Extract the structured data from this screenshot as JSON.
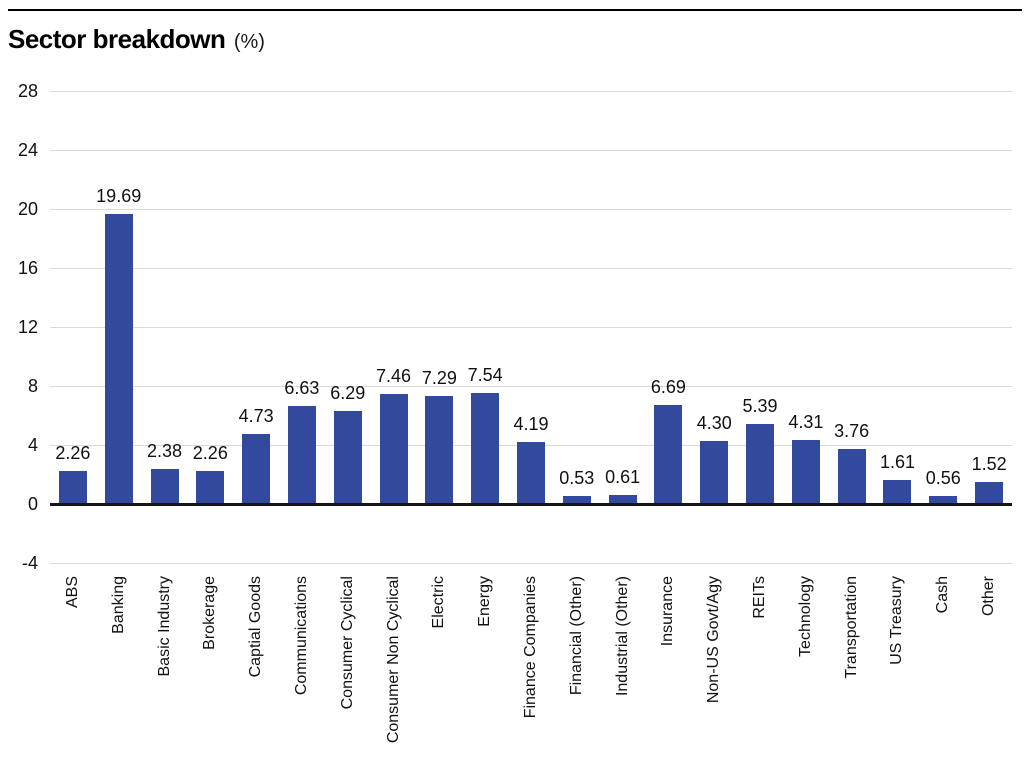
{
  "header": {
    "title": "Sector breakdown",
    "unit_label": "(%)"
  },
  "chart_data": {
    "type": "bar",
    "title": "Sector breakdown",
    "unit_label": "(%)",
    "categories": [
      "ABS",
      "Banking",
      "Basic Industry",
      "Brokerage",
      "Captial Goods",
      "Communications",
      "Consumer Cyclical",
      "Consumer Non Cyclical",
      "Electric",
      "Energy",
      "Finance Companies",
      "Financial (Other)",
      "Industrial (Other)",
      "Insurance",
      "Non-US Govt/Agy",
      "REITs",
      "Technology",
      "Transportation",
      "US Treasury",
      "Cash",
      "Other"
    ],
    "values": [
      2.26,
      19.69,
      2.38,
      2.26,
      4.73,
      6.63,
      6.29,
      7.46,
      7.29,
      7.54,
      4.19,
      0.53,
      0.61,
      6.69,
      4.3,
      5.39,
      4.31,
      3.76,
      1.61,
      0.56,
      1.52
    ],
    "value_labels": [
      "2.26",
      "19.69",
      "2.38",
      "2.26",
      "4.73",
      "6.63",
      "6.29",
      "7.46",
      "7.29",
      "7.54",
      "4.19",
      "0.53",
      "0.61",
      "6.69",
      "4.30",
      "5.39",
      "4.31",
      "3.76",
      "1.61",
      "0.56",
      "1.52"
    ],
    "yticks": [
      28,
      24,
      20,
      16,
      12,
      8,
      4,
      0,
      -4
    ],
    "ylim": [
      -4,
      28
    ],
    "grid": true,
    "legend": "none",
    "bar_color": "#32499D",
    "gridline_color": "#d9d9d9",
    "axis_color": "#141414",
    "text_color": "#111111"
  }
}
